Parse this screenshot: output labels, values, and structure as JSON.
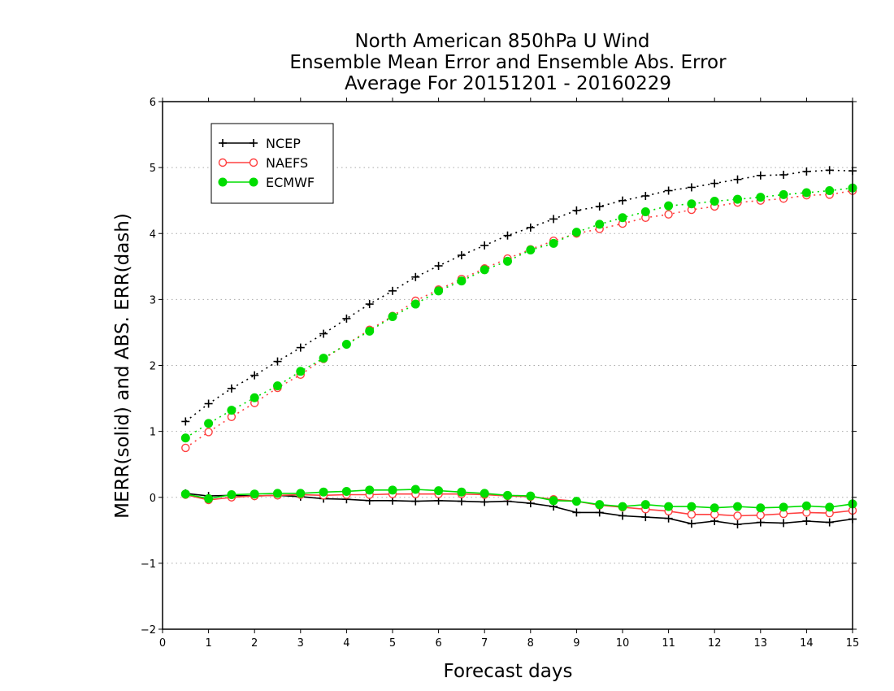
{
  "chart_data": {
    "type": "line",
    "title_lines": [
      "North American 850hPa U Wind",
      "Ensemble Mean Error and Ensemble Abs. Error",
      "Average For 20151201 - 20160229"
    ],
    "xlabel": "Forecast days",
    "ylabel": "MERR(solid) and ABS. ERR(dash)",
    "xlim": [
      0,
      15
    ],
    "ylim": [
      -2,
      6
    ],
    "x_ticks": [
      "0",
      "1",
      "2",
      "3",
      "4",
      "5",
      "6",
      "7",
      "8",
      "9",
      "10",
      "11",
      "12",
      "13",
      "14",
      "15"
    ],
    "y_ticks": [
      "-2",
      "-1",
      "0",
      "1",
      "2",
      "3",
      "4",
      "5",
      "6"
    ],
    "grid": "horizontal dotted",
    "legend_position": "top-left",
    "x": [
      0.5,
      1,
      1.5,
      2,
      2.5,
      3,
      3.5,
      4,
      4.5,
      5,
      5.5,
      6,
      6.5,
      7,
      7.5,
      8,
      8.5,
      9,
      9.5,
      10,
      10.5,
      11,
      11.5,
      12,
      12.5,
      13,
      13.5,
      14,
      14.5,
      15
    ],
    "series": [
      {
        "name": "NCEP",
        "color": "#000000",
        "marker": "plus",
        "abs_err": [
          1.15,
          1.42,
          1.65,
          1.85,
          2.06,
          2.27,
          2.48,
          2.71,
          2.93,
          3.13,
          3.34,
          3.51,
          3.67,
          3.82,
          3.97,
          4.09,
          4.22,
          4.35,
          4.41,
          4.5,
          4.57,
          4.65,
          4.7,
          4.76,
          4.82,
          4.88,
          4.89,
          4.94,
          4.96,
          4.95
        ],
        "mean_err": [
          0.06,
          0.02,
          0.03,
          0.02,
          0.03,
          0.01,
          -0.02,
          -0.03,
          -0.05,
          -0.05,
          -0.06,
          -0.05,
          -0.06,
          -0.07,
          -0.06,
          -0.09,
          -0.14,
          -0.23,
          -0.23,
          -0.28,
          -0.3,
          -0.32,
          -0.4,
          -0.36,
          -0.41,
          -0.38,
          -0.39,
          -0.36,
          -0.38,
          -0.33
        ]
      },
      {
        "name": "NAEFS",
        "color": "#ff4040",
        "marker": "open-circle",
        "abs_err": [
          0.75,
          0.99,
          1.22,
          1.43,
          1.66,
          1.86,
          2.1,
          2.32,
          2.54,
          2.75,
          2.98,
          3.15,
          3.31,
          3.47,
          3.62,
          3.76,
          3.89,
          4.0,
          4.07,
          4.15,
          4.24,
          4.29,
          4.36,
          4.41,
          4.47,
          4.5,
          4.53,
          4.58,
          4.59,
          4.65
        ],
        "mean_err": [
          0.04,
          -0.04,
          0.0,
          0.02,
          0.03,
          0.04,
          0.03,
          0.04,
          0.04,
          0.05,
          0.05,
          0.05,
          0.05,
          0.04,
          0.02,
          0.01,
          -0.03,
          -0.06,
          -0.12,
          -0.15,
          -0.18,
          -0.21,
          -0.26,
          -0.26,
          -0.28,
          -0.27,
          -0.25,
          -0.23,
          -0.24,
          -0.2
        ]
      },
      {
        "name": "ECMWF",
        "color": "#00dd00",
        "marker": "filled-circle",
        "abs_err": [
          0.9,
          1.12,
          1.32,
          1.51,
          1.69,
          1.91,
          2.11,
          2.32,
          2.52,
          2.74,
          2.93,
          3.13,
          3.28,
          3.45,
          3.58,
          3.75,
          3.85,
          4.02,
          4.14,
          4.24,
          4.33,
          4.42,
          4.45,
          4.49,
          4.52,
          4.55,
          4.59,
          4.62,
          4.65,
          4.69
        ],
        "mean_err": [
          0.05,
          -0.02,
          0.04,
          0.05,
          0.06,
          0.06,
          0.08,
          0.09,
          0.11,
          0.11,
          0.12,
          0.1,
          0.08,
          0.06,
          0.03,
          0.02,
          -0.05,
          -0.06,
          -0.11,
          -0.14,
          -0.11,
          -0.14,
          -0.14,
          -0.16,
          -0.14,
          -0.16,
          -0.15,
          -0.13,
          -0.15,
          -0.1
        ]
      }
    ]
  }
}
